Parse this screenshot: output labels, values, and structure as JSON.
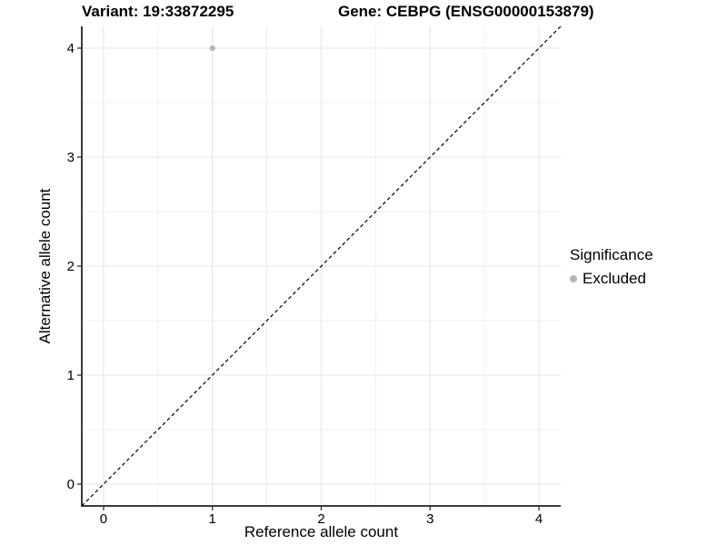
{
  "titles": {
    "variant": "Variant: 19:33872295",
    "gene": "Gene: CEBPG (ENSG00000153879)"
  },
  "axes": {
    "x_label": "Reference allele count",
    "y_label": "Alternative allele count"
  },
  "legend": {
    "title": "Significance",
    "items": [
      {
        "label": "Excluded",
        "color": "#b5b5b5"
      }
    ]
  },
  "colors": {
    "background": "#ffffff",
    "grid_major": "#e4e4e4",
    "grid_minor": "#efefef",
    "axis_line": "#3c3c3c",
    "tick_mark": "#333333",
    "tick_label": "#000000",
    "reference_line": "#000000",
    "point_excluded": "#b5b5b5"
  },
  "chart_data": {
    "type": "scatter",
    "title": "Variant: 19:33872295   Gene: CEBPG (ENSG00000153879)",
    "xlabel": "Reference allele count",
    "ylabel": "Alternative allele count",
    "xlim": [
      -0.2,
      4.2
    ],
    "ylim": [
      -0.2,
      4.2
    ],
    "x_ticks": [
      0,
      1,
      2,
      3,
      4
    ],
    "y_ticks": [
      0,
      1,
      2,
      3,
      4
    ],
    "minor_grid_step": 0.5,
    "grid": true,
    "legend_position": "right",
    "series": [
      {
        "name": "Excluded",
        "points": [
          {
            "x": 1,
            "y": 4
          }
        ],
        "color": "#b5b5b5"
      }
    ],
    "reference_line": {
      "kind": "diagonal-identity",
      "slope": 1,
      "intercept": 0,
      "style": "dashed",
      "color": "#000000"
    }
  }
}
